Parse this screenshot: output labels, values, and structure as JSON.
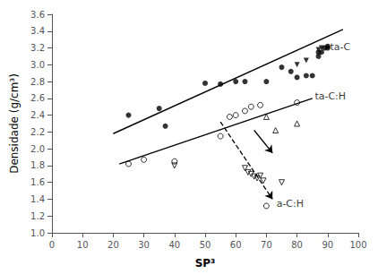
{
  "chart_data": {
    "type": "scatter",
    "xlabel": "SP³",
    "ylabel": "Densidade (g/cm³)",
    "xlim": [
      0,
      100
    ],
    "ylim": [
      1.0,
      3.6
    ],
    "xticks": [
      0,
      10,
      20,
      30,
      40,
      50,
      60,
      70,
      80,
      90,
      100
    ],
    "yticks": [
      {
        "value": 1.0,
        "label": "1.0"
      },
      1.2,
      1.4,
      1.6,
      1.8,
      {
        "value": 2.0,
        "label": "2.0"
      },
      2.2,
      2.4,
      2.6,
      2.8,
      {
        "value": 3.0,
        "label": "3.0"
      },
      3.2,
      3.4,
      3.6
    ],
    "grid": false,
    "series": [
      {
        "type": "scatter",
        "marker": "filled_circle",
        "color": "#000000",
        "x": [
          25,
          35,
          37,
          50,
          55,
          60,
          63,
          70,
          75,
          78,
          80,
          83,
          85,
          87,
          87,
          88,
          89,
          90,
          90
        ],
        "values": [
          2.4,
          2.48,
          2.27,
          2.78,
          2.77,
          2.8,
          2.8,
          2.8,
          2.97,
          2.92,
          2.85,
          2.87,
          2.87,
          3.1,
          3.15,
          3.15,
          3.2,
          3.22,
          3.2
        ]
      },
      {
        "type": "scatter",
        "marker": "filled_triangle_down",
        "color": "#000000",
        "x": [
          80,
          83,
          87,
          88
        ],
        "values": [
          3.0,
          3.05,
          3.18,
          3.2
        ]
      },
      {
        "type": "scatter",
        "marker": "open_circle",
        "color": "#000000",
        "x": [
          25,
          30,
          40,
          55,
          58,
          60,
          63,
          65,
          68,
          80
        ],
        "values": [
          1.82,
          1.87,
          1.85,
          2.15,
          2.38,
          2.4,
          2.45,
          2.5,
          2.52,
          2.55
        ]
      },
      {
        "type": "scatter",
        "marker": "open_triangle_up",
        "color": "#000000",
        "x": [
          70,
          73,
          80
        ],
        "values": [
          2.38,
          2.22,
          2.3
        ]
      },
      {
        "type": "scatter",
        "marker": "open_triangle_down",
        "color": "#000000",
        "x": [
          40,
          63,
          64,
          65,
          66,
          67,
          68,
          69,
          75
        ],
        "values": [
          1.8,
          1.77,
          1.72,
          1.7,
          1.67,
          1.65,
          1.68,
          1.62,
          1.6
        ]
      },
      {
        "type": "scatter",
        "marker": "open_circle",
        "color": "#000000",
        "x": [
          70
        ],
        "values": [
          1.32
        ]
      },
      {
        "type": "line",
        "line_style": "solid",
        "color": "#000000",
        "x": [
          20,
          95
        ],
        "values": [
          2.18,
          3.42
        ]
      },
      {
        "type": "line",
        "line_style": "solid",
        "color": "#000000",
        "x": [
          22,
          85
        ],
        "values": [
          1.82,
          2.6
        ]
      },
      {
        "type": "arrow",
        "line_style": "dashed",
        "color": "#000000",
        "x": [
          55,
          72
        ],
        "values": [
          2.32,
          1.4
        ]
      },
      {
        "type": "arrow",
        "line_style": "solid",
        "color": "#000000",
        "x": [
          66,
          72
        ],
        "values": [
          2.22,
          1.95
        ]
      }
    ],
    "annotations": [
      {
        "text": "ta-C",
        "x": 90.5,
        "y": 3.21
      },
      {
        "text": "ta-C:H",
        "x": 85.5,
        "y": 2.63
      },
      {
        "text": "a-C:H",
        "x": 73,
        "y": 1.35
      }
    ]
  }
}
